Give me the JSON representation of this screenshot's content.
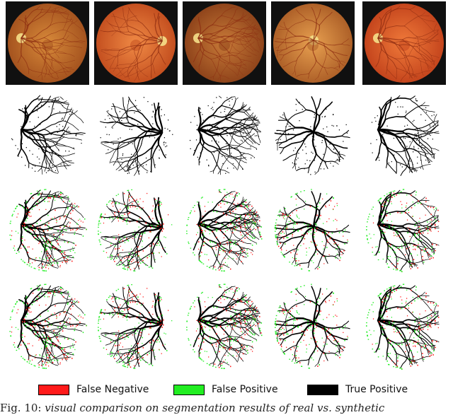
{
  "figure": {
    "rows": [
      {
        "name": "fundus-images",
        "cells": [
          {
            "bg": "#101010",
            "disc": "left",
            "tone": [
              "#d88a3a",
              "#a04e1c"
            ]
          },
          {
            "bg": "#101010",
            "disc": "right",
            "tone": [
              "#f08a45",
              "#c04a1c"
            ]
          },
          {
            "bg": "#101010",
            "disc": "left",
            "tone": [
              "#c87a38",
              "#8a3f18"
            ]
          },
          {
            "bg": "#101010",
            "disc": "center",
            "tone": [
              "#e8a050",
              "#a85a24"
            ]
          },
          {
            "bg": "#101010",
            "disc": "left",
            "tone": [
              "#f07a3a",
              "#c0401a"
            ]
          }
        ]
      },
      {
        "name": "ground-truth-segmentations",
        "cells": [
          {
            "disc": "left"
          },
          {
            "disc": "right"
          },
          {
            "disc": "left"
          },
          {
            "disc": "center"
          },
          {
            "disc": "left"
          }
        ]
      },
      {
        "name": "real-training-results",
        "cells": [
          {
            "disc": "left"
          },
          {
            "disc": "right"
          },
          {
            "disc": "left"
          },
          {
            "disc": "center"
          },
          {
            "disc": "left"
          }
        ]
      },
      {
        "name": "synthetic-training-results",
        "cells": [
          {
            "disc": "left"
          },
          {
            "disc": "right"
          },
          {
            "disc": "left"
          },
          {
            "disc": "center"
          },
          {
            "disc": "left"
          }
        ]
      }
    ],
    "legend": {
      "items": [
        {
          "label": "False Negative",
          "color": "#ff1a1a"
        },
        {
          "label": "False Positive",
          "color": "#22ee22"
        },
        {
          "label": "True Positive",
          "color": "#000000"
        }
      ]
    },
    "caption": {
      "prefix": "Fig. 10:",
      "text": "visual comparison on segmentation results of real vs. synthetic"
    }
  }
}
